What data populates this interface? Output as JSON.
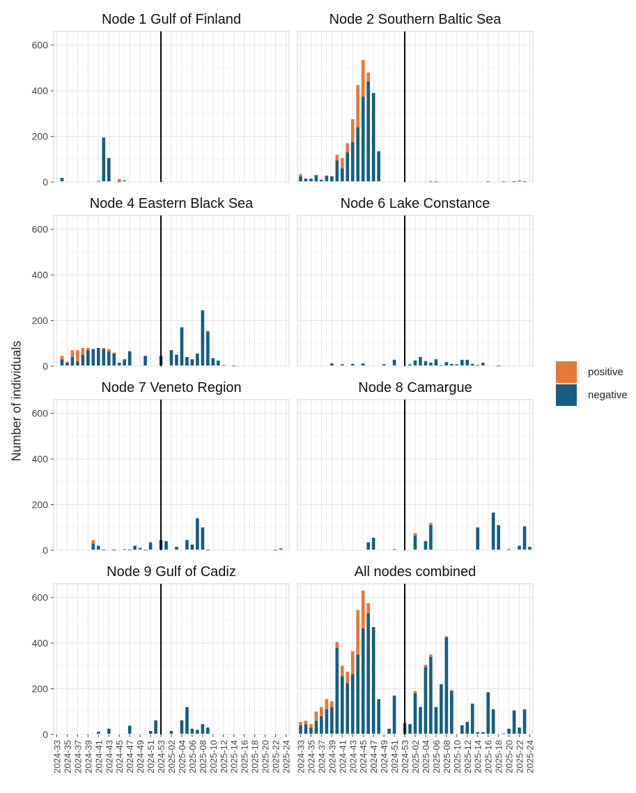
{
  "chart_data": {
    "type": "bar",
    "stacked": true,
    "ylabel": "Number of individuals",
    "ylim": [
      0,
      660
    ],
    "yticks": [
      0,
      200,
      400,
      600
    ],
    "reference_line_x": "2024-53",
    "x": [
      "2024-33",
      "2024-34",
      "2024-35",
      "2024-36",
      "2024-37",
      "2024-38",
      "2024-39",
      "2024-40",
      "2024-41",
      "2024-42",
      "2024-43",
      "2024-44",
      "2024-45",
      "2024-46",
      "2024-47",
      "2024-48",
      "2024-49",
      "2024-50",
      "2024-51",
      "2024-52",
      "2024-53",
      "2025-01",
      "2025-02",
      "2025-03",
      "2025-04",
      "2025-05",
      "2025-06",
      "2025-07",
      "2025-08",
      "2025-09",
      "2025-10",
      "2025-11",
      "2025-12",
      "2025-13",
      "2025-14",
      "2025-15",
      "2025-16",
      "2025-17",
      "2025-18",
      "2025-19",
      "2025-20",
      "2025-21",
      "2025-22",
      "2025-23",
      "2025-24"
    ],
    "tick_labels": [
      "2024-33",
      "2024-35",
      "2024-37",
      "2024-39",
      "2024-41",
      "2024-43",
      "2024-45",
      "2024-47",
      "2024-49",
      "2024-51",
      "2024-53",
      "2025-02",
      "2025-04",
      "2025-06",
      "2025-08",
      "2025-10",
      "2025-12",
      "2025-14",
      "2025-16",
      "2025-18",
      "2025-20",
      "2025-22",
      "2025-24"
    ],
    "legend": {
      "position": "right",
      "entries": [
        {
          "name": "positive",
          "color": "#E8773A"
        },
        {
          "name": "negative",
          "color": "#155F83"
        }
      ]
    },
    "panels": [
      {
        "title": "Node 1 Gulf of Finland",
        "negative": [
          null,
          18,
          null,
          null,
          null,
          null,
          null,
          null,
          5,
          195,
          105,
          null,
          3,
          7,
          null,
          null,
          null,
          null,
          null,
          null,
          null,
          null,
          null,
          null,
          null,
          null,
          null,
          null,
          null,
          null,
          null,
          null,
          null,
          null,
          null,
          null,
          null,
          null,
          null,
          null,
          null,
          null,
          null,
          null,
          null
        ],
        "positive": [
          0,
          0,
          0,
          0,
          0,
          0,
          0,
          0,
          0,
          0,
          0,
          0,
          10,
          0,
          0,
          0,
          0,
          0,
          0,
          0,
          0,
          0,
          0,
          0,
          0,
          0,
          0,
          0,
          0,
          0,
          0,
          0,
          0,
          0,
          0,
          0,
          0,
          0,
          0,
          0,
          0,
          0,
          0,
          0,
          0
        ]
      },
      {
        "title": "Node 2 Southern Baltic Sea",
        "negative": [
          25,
          15,
          15,
          30,
          10,
          28,
          25,
          95,
          60,
          130,
          175,
          240,
          375,
          440,
          390,
          135,
          null,
          null,
          null,
          null,
          null,
          null,
          null,
          null,
          null,
          2,
          2,
          null,
          null,
          null,
          null,
          null,
          null,
          null,
          null,
          null,
          2,
          null,
          null,
          2,
          null,
          3,
          6,
          3,
          null
        ],
        "positive": [
          10,
          0,
          0,
          0,
          0,
          0,
          0,
          25,
          45,
          40,
          100,
          185,
          160,
          40,
          0,
          0,
          0,
          0,
          0,
          0,
          0,
          0,
          0,
          0,
          0,
          0,
          0,
          0,
          0,
          0,
          0,
          0,
          0,
          0,
          0,
          0,
          0,
          0,
          0,
          0,
          0,
          0,
          0,
          0,
          0
        ]
      },
      {
        "title": "Node 4 Eastern Black Sea",
        "negative": [
          null,
          30,
          15,
          40,
          20,
          50,
          70,
          75,
          80,
          75,
          65,
          55,
          15,
          30,
          65,
          null,
          null,
          45,
          null,
          null,
          45,
          null,
          70,
          50,
          170,
          40,
          30,
          55,
          245,
          150,
          35,
          25,
          5,
          null,
          2,
          null,
          null,
          null,
          null,
          null,
          null,
          null,
          null,
          null,
          null
        ],
        "positive": [
          0,
          15,
          5,
          30,
          50,
          30,
          10,
          0,
          0,
          5,
          10,
          5,
          0,
          0,
          0,
          0,
          0,
          0,
          0,
          0,
          0,
          0,
          0,
          0,
          0,
          0,
          0,
          0,
          0,
          5,
          0,
          0,
          0,
          0,
          0,
          0,
          0,
          0,
          0,
          0,
          0,
          0,
          0,
          0,
          0
        ]
      },
      {
        "title": "Node 6 Lake Constance",
        "negative": [
          null,
          null,
          null,
          null,
          null,
          null,
          12,
          null,
          8,
          null,
          10,
          null,
          12,
          null,
          null,
          null,
          8,
          null,
          28,
          null,
          null,
          8,
          25,
          40,
          22,
          15,
          30,
          5,
          18,
          10,
          8,
          28,
          28,
          10,
          5,
          15,
          null,
          null,
          2,
          null,
          null,
          null,
          null,
          null,
          null
        ],
        "positive": [
          0,
          0,
          0,
          0,
          0,
          0,
          0,
          0,
          0,
          0,
          0,
          0,
          0,
          0,
          0,
          0,
          0,
          0,
          0,
          0,
          0,
          0,
          0,
          0,
          0,
          0,
          0,
          0,
          0,
          0,
          0,
          0,
          0,
          0,
          0,
          0,
          0,
          0,
          0,
          0,
          0,
          0,
          0,
          0,
          0
        ]
      },
      {
        "title": "Node 7 Veneto Region",
        "negative": [
          null,
          null,
          null,
          null,
          null,
          null,
          null,
          30,
          20,
          3,
          null,
          3,
          null,
          5,
          3,
          20,
          10,
          3,
          35,
          null,
          45,
          40,
          null,
          15,
          null,
          45,
          25,
          140,
          100,
          3,
          null,
          null,
          null,
          null,
          null,
          null,
          null,
          null,
          null,
          null,
          null,
          null,
          3,
          8,
          null
        ],
        "positive": [
          0,
          0,
          0,
          0,
          0,
          0,
          0,
          15,
          0,
          0,
          0,
          0,
          0,
          0,
          0,
          0,
          0,
          0,
          0,
          0,
          0,
          0,
          0,
          0,
          0,
          0,
          0,
          0,
          0,
          0,
          0,
          0,
          0,
          0,
          0,
          0,
          0,
          0,
          0,
          0,
          0,
          0,
          0,
          0,
          0
        ]
      },
      {
        "title": "Node 8 Camargue",
        "negative": [
          null,
          null,
          null,
          null,
          null,
          null,
          null,
          null,
          null,
          null,
          null,
          null,
          null,
          35,
          55,
          null,
          null,
          null,
          5,
          null,
          null,
          null,
          65,
          null,
          40,
          110,
          null,
          null,
          null,
          null,
          null,
          null,
          null,
          null,
          100,
          null,
          null,
          165,
          110,
          null,
          5,
          null,
          20,
          105,
          15
        ],
        "positive": [
          0,
          0,
          0,
          0,
          0,
          0,
          0,
          0,
          0,
          0,
          0,
          0,
          0,
          0,
          0,
          0,
          0,
          0,
          0,
          0,
          0,
          0,
          10,
          0,
          0,
          10,
          0,
          0,
          0,
          0,
          0,
          0,
          0,
          0,
          0,
          0,
          0,
          0,
          0,
          0,
          0,
          0,
          0,
          0,
          0
        ]
      },
      {
        "title": "Node 9 Gulf of Cadiz",
        "negative": [
          null,
          null,
          null,
          null,
          null,
          null,
          null,
          null,
          12,
          null,
          25,
          null,
          null,
          null,
          38,
          null,
          null,
          null,
          15,
          62,
          null,
          null,
          15,
          null,
          62,
          120,
          25,
          20,
          45,
          30,
          null,
          null,
          null,
          null,
          null,
          null,
          null,
          null,
          null,
          null,
          null,
          null,
          null,
          null,
          null
        ],
        "positive": [
          0,
          0,
          0,
          0,
          0,
          0,
          0,
          0,
          0,
          0,
          0,
          0,
          0,
          0,
          0,
          0,
          0,
          0,
          0,
          0,
          0,
          0,
          0,
          0,
          0,
          0,
          0,
          0,
          0,
          0,
          0,
          0,
          0,
          0,
          0,
          0,
          0,
          0,
          0,
          0,
          0,
          0,
          0,
          0,
          0
        ]
      },
      {
        "title": "All nodes combined",
        "negative": [
          40,
          45,
          30,
          60,
          80,
          110,
          120,
          380,
          255,
          225,
          265,
          350,
          465,
          530,
          470,
          155,
          null,
          25,
          170,
          null,
          50,
          45,
          180,
          120,
          295,
          340,
          120,
          220,
          425,
          190,
          null,
          40,
          55,
          135,
          10,
          10,
          185,
          110,
          null,
          5,
          25,
          105,
          30,
          110,
          null
        ],
        "positive": [
          15,
          15,
          15,
          40,
          40,
          45,
          25,
          25,
          45,
          50,
          100,
          195,
          165,
          45,
          0,
          0,
          0,
          0,
          0,
          0,
          0,
          0,
          10,
          0,
          10,
          10,
          0,
          0,
          5,
          5,
          0,
          0,
          0,
          0,
          0,
          0,
          0,
          0,
          0,
          0,
          0,
          0,
          0,
          0,
          0
        ]
      }
    ]
  }
}
